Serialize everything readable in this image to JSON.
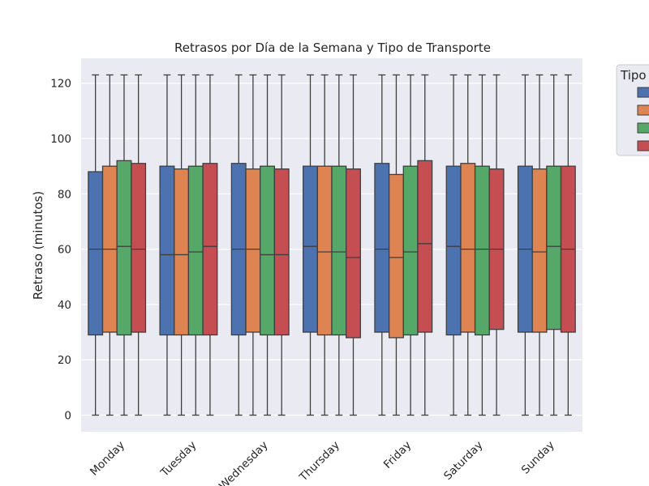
{
  "chart_data": {
    "type": "box",
    "title": "Retrasos por Día de la Semana y Tipo de Transporte",
    "xlabel": "",
    "ylabel": "Retraso (minutos)",
    "ylim": [
      -6,
      129
    ],
    "yticks": [
      0,
      20,
      40,
      60,
      80,
      100,
      120
    ],
    "grid": true,
    "legend": {
      "title": "Tipo",
      "placement": "outside-top-right"
    },
    "categories": [
      "Monday",
      "Tuesday",
      "Wednesday",
      "Thursday",
      "Friday",
      "Saturday",
      "Sunday"
    ],
    "series": [
      {
        "color": "#4c72b0",
        "boxes": [
          {
            "min": 0,
            "q1": 29,
            "median": 60,
            "q3": 88,
            "max": 123
          },
          {
            "min": 0,
            "q1": 29,
            "median": 58,
            "q3": 90,
            "max": 123
          },
          {
            "min": 0,
            "q1": 29,
            "median": 60,
            "q3": 91,
            "max": 123
          },
          {
            "min": 0,
            "q1": 30,
            "median": 61,
            "q3": 90,
            "max": 123
          },
          {
            "min": 0,
            "q1": 30,
            "median": 60,
            "q3": 91,
            "max": 123
          },
          {
            "min": 0,
            "q1": 29,
            "median": 61,
            "q3": 90,
            "max": 123
          },
          {
            "min": 0,
            "q1": 30,
            "median": 60,
            "q3": 90,
            "max": 123
          }
        ]
      },
      {
        "color": "#dd8452",
        "boxes": [
          {
            "min": 0,
            "q1": 30,
            "median": 60,
            "q3": 90,
            "max": 123
          },
          {
            "min": 0,
            "q1": 29,
            "median": 58,
            "q3": 89,
            "max": 123
          },
          {
            "min": 0,
            "q1": 30,
            "median": 60,
            "q3": 89,
            "max": 123
          },
          {
            "min": 0,
            "q1": 29,
            "median": 59,
            "q3": 90,
            "max": 123
          },
          {
            "min": 0,
            "q1": 28,
            "median": 57,
            "q3": 87,
            "max": 123
          },
          {
            "min": 0,
            "q1": 30,
            "median": 60,
            "q3": 91,
            "max": 123
          },
          {
            "min": 0,
            "q1": 30,
            "median": 59,
            "q3": 89,
            "max": 123
          }
        ]
      },
      {
        "color": "#55a868",
        "boxes": [
          {
            "min": 0,
            "q1": 29,
            "median": 61,
            "q3": 92,
            "max": 123
          },
          {
            "min": 0,
            "q1": 29,
            "median": 59,
            "q3": 90,
            "max": 123
          },
          {
            "min": 0,
            "q1": 29,
            "median": 58,
            "q3": 90,
            "max": 123
          },
          {
            "min": 0,
            "q1": 29,
            "median": 59,
            "q3": 90,
            "max": 123
          },
          {
            "min": 0,
            "q1": 29,
            "median": 59,
            "q3": 90,
            "max": 123
          },
          {
            "min": 0,
            "q1": 29,
            "median": 60,
            "q3": 90,
            "max": 123
          },
          {
            "min": 0,
            "q1": 31,
            "median": 61,
            "q3": 90,
            "max": 123
          }
        ]
      },
      {
        "color": "#c44e52",
        "boxes": [
          {
            "min": 0,
            "q1": 30,
            "median": 60,
            "q3": 91,
            "max": 123
          },
          {
            "min": 0,
            "q1": 29,
            "median": 61,
            "q3": 91,
            "max": 123
          },
          {
            "min": 0,
            "q1": 29,
            "median": 58,
            "q3": 89,
            "max": 123
          },
          {
            "min": 0,
            "q1": 28,
            "median": 57,
            "q3": 89,
            "max": 123
          },
          {
            "min": 0,
            "q1": 30,
            "median": 62,
            "q3": 92,
            "max": 123
          },
          {
            "min": 0,
            "q1": 31,
            "median": 60,
            "q3": 89,
            "max": 123
          },
          {
            "min": 0,
            "q1": 30,
            "median": 60,
            "q3": 90,
            "max": 123
          }
        ]
      }
    ]
  }
}
